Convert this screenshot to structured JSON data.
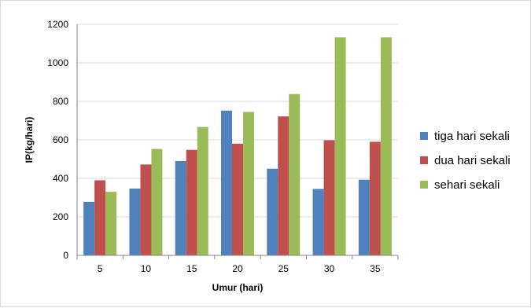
{
  "chart_data": {
    "type": "bar",
    "title": "",
    "xlabel": "Umur (hari)",
    "ylabel": "IP(kg/hari)",
    "categories": [
      "5",
      "10",
      "15",
      "20",
      "25",
      "30",
      "35"
    ],
    "ylim": [
      0,
      1200
    ],
    "yticks": [
      0,
      200,
      400,
      600,
      800,
      1000,
      1200
    ],
    "grid": true,
    "legend_position": "right",
    "series": [
      {
        "name": "tiga hari sekali",
        "color": "#4f81bd",
        "values": [
          278,
          347,
          490,
          752,
          450,
          345,
          393
        ]
      },
      {
        "name": "dua hari sekali",
        "color": "#c0504d",
        "values": [
          390,
          472,
          548,
          580,
          722,
          598,
          590
        ]
      },
      {
        "name": "sehari sekali",
        "color": "#9bbb59",
        "values": [
          330,
          553,
          667,
          745,
          838,
          1133,
          1133
        ]
      }
    ]
  }
}
